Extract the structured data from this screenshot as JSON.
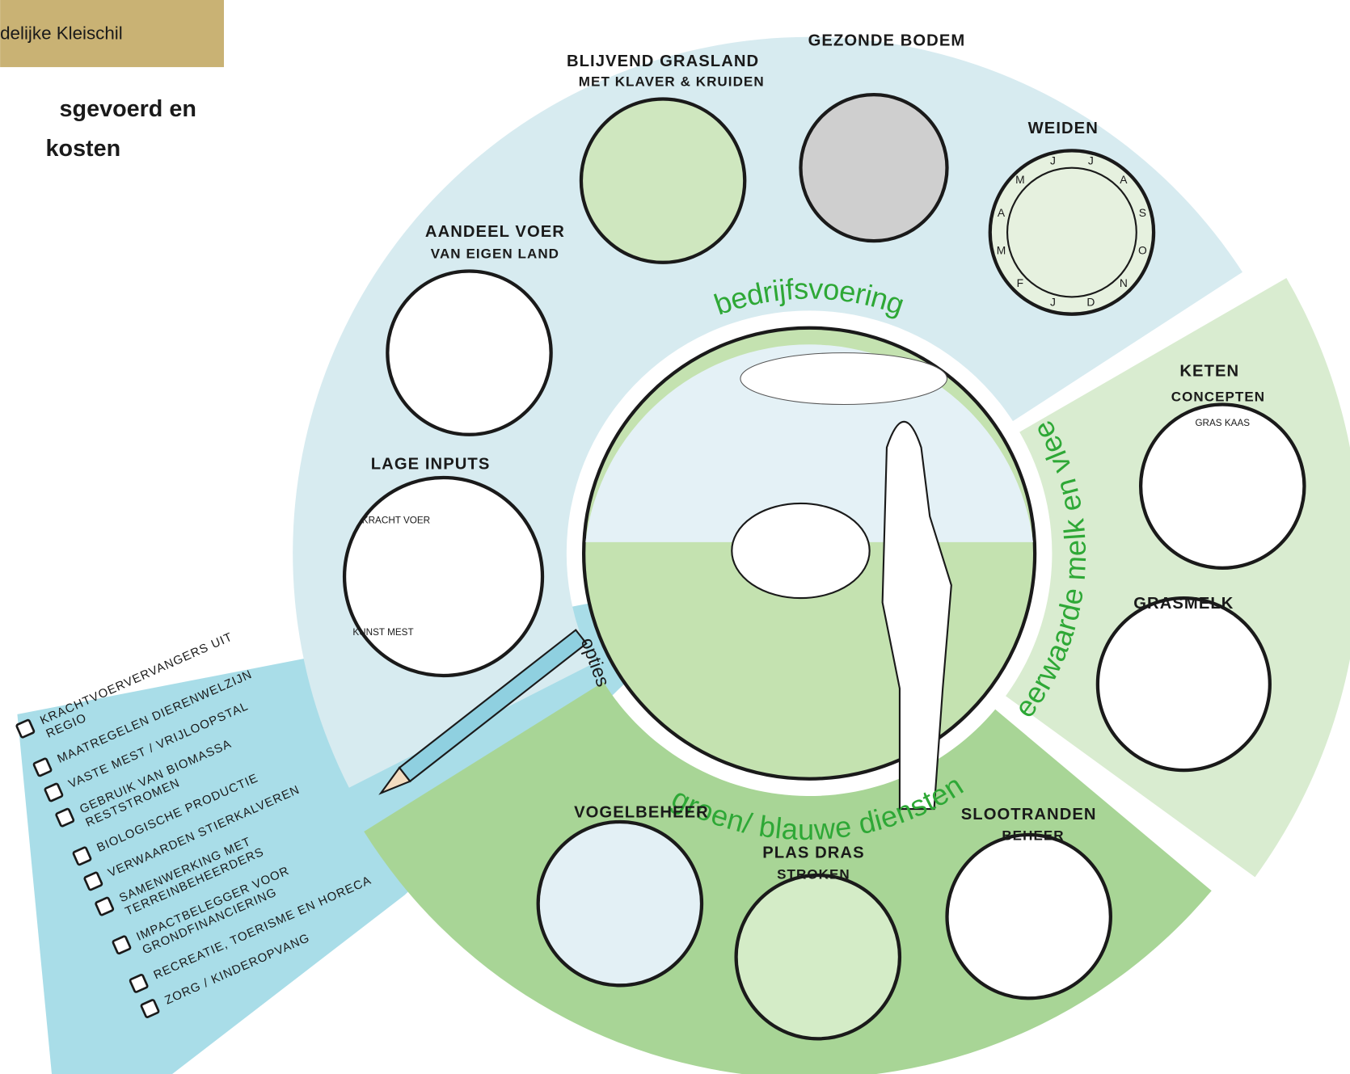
{
  "header": {
    "tag": "delijke Kleischil",
    "title_lines": [
      "sgevoerd en",
      "kosten"
    ]
  },
  "diagram": {
    "sections": [
      {
        "label": "bedrijfsvoering",
        "items": [
          {
            "lines": [
              "BLIJVEND GRASLAND",
              "MET KLAVER & KRUIDEN"
            ]
          },
          {
            "lines": [
              "GEZONDE BODEM"
            ]
          },
          {
            "lines": [
              "WEIDEN"
            ],
            "months": [
              "J",
              "J",
              "A",
              "S",
              "O",
              "N",
              "D",
              "J",
              "F",
              "M",
              "A",
              "M"
            ]
          },
          {
            "lines": [
              "AANDEEL VOER",
              "VAN EIGEN LAND"
            ]
          },
          {
            "lines": [
              "LAGE INPUTS"
            ],
            "tags": [
              "KRACHT VOER",
              "KUNST MEST"
            ]
          }
        ]
      },
      {
        "label": "meerwaarde melk en vlees",
        "items": [
          {
            "lines": [
              "KETEN",
              "CONCEPTEN"
            ],
            "tags": [
              "GRAS KAAS"
            ]
          },
          {
            "lines": [
              "GRASMELK"
            ]
          }
        ]
      },
      {
        "label": "groen/ blauwe diensten",
        "items": [
          {
            "lines": [
              "VOGELBEHEER"
            ]
          },
          {
            "lines": [
              "PLAS DRAS",
              "STROKEN"
            ]
          },
          {
            "lines": [
              "SLOOTRANDEN",
              "BEHEER"
            ]
          }
        ]
      }
    ],
    "options": {
      "label": "opties",
      "items": [
        [
          "KRACHTVOERVERVANGERS UIT",
          "REGIO"
        ],
        [
          "MAATREGELEN DIERENWELZIJN"
        ],
        [
          "VASTE MEST / VRIJLOOPSTAL"
        ],
        [
          "GEBRUIK VAN BIOMASSA",
          "RESTSTROMEN"
        ],
        [
          "BIOLOGISCHE PRODUCTIE"
        ],
        [
          "VERWAARDEN STIERKALVEREN"
        ],
        [
          "SAMENWERKING MET",
          "TERREINBEHEERDERS"
        ],
        [
          "IMPACTBELEGGER VOOR",
          "GRONDFINANCIERING"
        ],
        [
          "RECREATIE, TOERISME EN HORECA"
        ],
        [
          "ZORG / KINDEROPVANG"
        ]
      ]
    }
  }
}
